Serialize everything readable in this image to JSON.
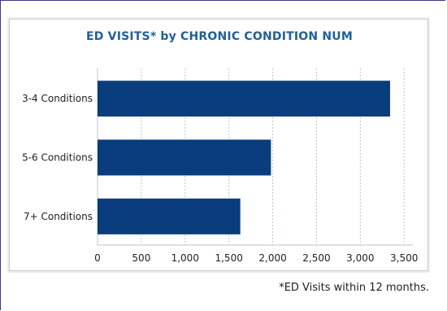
{
  "chart_data": {
    "type": "bar",
    "orientation": "horizontal",
    "title": "ED VISITS* by CHRONIC CONDITION NUM",
    "categories": [
      "3-4 Conditions",
      "5-6 Conditions",
      "7+ Conditions"
    ],
    "values": [
      3340,
      1980,
      1630
    ],
    "xlim": [
      0,
      3600
    ],
    "xticks": [
      0,
      500,
      1000,
      1500,
      2000,
      2500,
      3000,
      3500
    ],
    "xtick_labels": [
      "0",
      "500",
      "1,000",
      "1,500",
      "2,000",
      "2,500",
      "3,000",
      "3,500"
    ],
    "grid": true,
    "bar_color": "#0a3d7e",
    "grid_color": "#b8c4d0"
  },
  "footnote": "*ED Visits within 12 months."
}
